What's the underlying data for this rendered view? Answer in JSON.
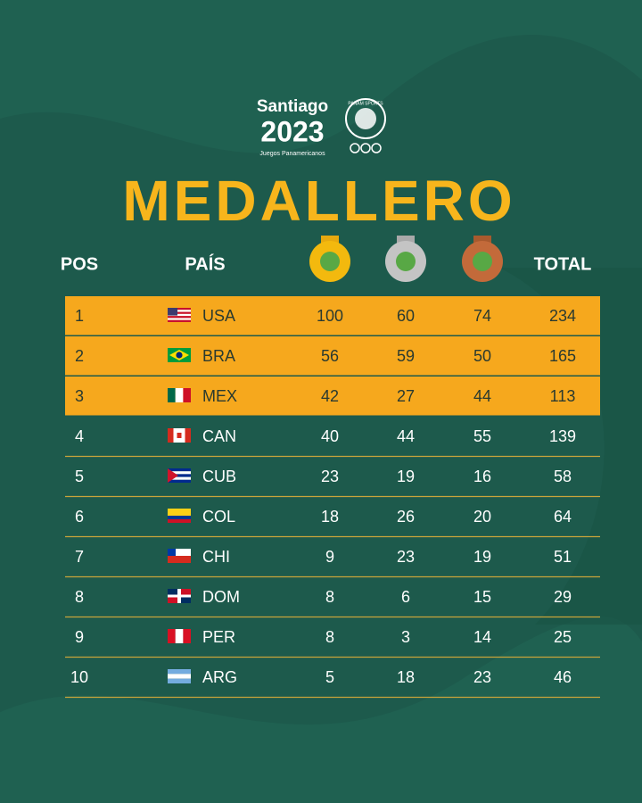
{
  "header": {
    "city": "Santiago",
    "year": "2023",
    "event": "Juegos Panamericanos",
    "emblem": "PANAM SPORTS"
  },
  "title": "MEDALLERO",
  "table": {
    "columns": {
      "pos": "POS",
      "country": "PAÍS",
      "total": "TOTAL"
    },
    "rows": [
      [
        1,
        "USA",
        100,
        60,
        74,
        234
      ],
      [
        2,
        "BRA",
        56,
        59,
        50,
        165
      ],
      [
        3,
        "MEX",
        42,
        27,
        44,
        113
      ],
      [
        4,
        "CAN",
        40,
        44,
        55,
        139
      ],
      [
        5,
        "CUB",
        23,
        19,
        16,
        58
      ],
      [
        6,
        "COL",
        18,
        26,
        20,
        64
      ],
      [
        7,
        "CHI",
        9,
        23,
        19,
        51
      ],
      [
        8,
        "DOM",
        8,
        6,
        15,
        29
      ],
      [
        9,
        "PER",
        8,
        3,
        14,
        25
      ],
      [
        10,
        "ARG",
        5,
        18,
        23,
        46
      ]
    ]
  }
}
